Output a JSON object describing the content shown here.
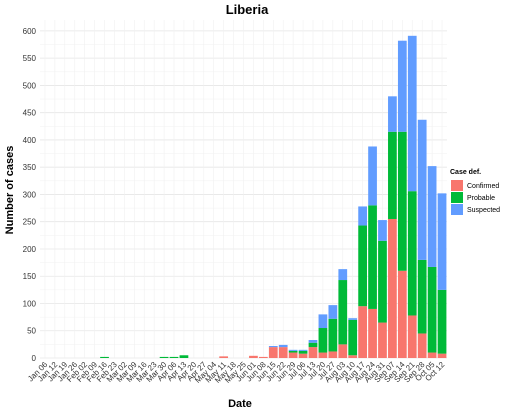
{
  "chart_data": {
    "type": "bar",
    "stacked": true,
    "title": "Liberia",
    "xlabel": "Date",
    "ylabel": "Number of cases",
    "ylim": [
      0,
      620
    ],
    "yticks": [
      0,
      50,
      100,
      150,
      200,
      250,
      300,
      350,
      400,
      450,
      500,
      550,
      600
    ],
    "grid": true,
    "legend": {
      "title": "Case def.",
      "placement": "right"
    },
    "xticks": [
      "Jan 06",
      "Jan 12",
      "Jan 19",
      "Jan 26",
      "Feb 02",
      "Feb 09",
      "Feb 16",
      "Feb 23",
      "Mar 02",
      "Mar 09",
      "Mar 16",
      "Mar 23",
      "Mar 30",
      "Apr 06",
      "Apr 13",
      "Apr 20",
      "Apr 27",
      "May 04",
      "May 11",
      "May 18",
      "May 25",
      "Jun 01",
      "Jun 08",
      "Jun 15",
      "Jun 22",
      "Jun 29",
      "Jul 06",
      "Jul 13",
      "Jul 20",
      "Jul 27",
      "Aug 03",
      "Aug 10",
      "Aug 17",
      "Aug 24",
      "Aug 31",
      "Sep 07",
      "Sep 14",
      "Sep 21",
      "Sep 28",
      "Oct 05",
      "Oct 12"
    ],
    "categories": [
      "Jan 06",
      "Jan 12",
      "Jan 19",
      "Jan 26",
      "Feb 02",
      "Feb 09",
      "Feb 16",
      "Feb 23",
      "Mar 02",
      "Mar 09",
      "Mar 16",
      "Mar 23",
      "Mar 30",
      "Apr 06",
      "Apr 13",
      "Apr 20",
      "Apr 27",
      "May 04",
      "May 11",
      "May 18",
      "May 25",
      "Jun 01",
      "Jun 08",
      "Jun 15",
      "Jun 22",
      "Jun 29",
      "Jul 06",
      "Jul 13",
      "Jul 20",
      "Jul 27",
      "Aug 03",
      "Aug 10",
      "Aug 17",
      "Aug 24",
      "Aug 31",
      "Sep 07",
      "Sep 14",
      "Sep 21",
      "Sep 28",
      "Oct 05",
      "Oct 12"
    ],
    "series": [
      {
        "name": "Confirmed",
        "color": "#F8766D",
        "values": [
          0,
          0,
          0,
          0,
          0,
          0,
          0,
          0,
          0,
          0,
          0,
          0,
          0,
          0,
          0,
          0,
          0,
          0,
          3,
          0,
          0,
          4,
          2,
          20,
          20,
          10,
          8,
          20,
          10,
          12,
          25,
          5,
          95,
          90,
          65,
          255,
          160,
          78,
          45,
          10,
          8
        ]
      },
      {
        "name": "Probable",
        "color": "#00BA38",
        "values": [
          0,
          0,
          0,
          0,
          0,
          0,
          2,
          0,
          0,
          0,
          0,
          0,
          2,
          2,
          5,
          0,
          0,
          0,
          0,
          0,
          0,
          0,
          0,
          0,
          0,
          3,
          5,
          8,
          45,
          60,
          118,
          65,
          148,
          190,
          150,
          160,
          255,
          228,
          135,
          157,
          117
        ]
      },
      {
        "name": "Suspected",
        "color": "#619CFF",
        "values": [
          0,
          0,
          0,
          0,
          0,
          0,
          0,
          0,
          0,
          0,
          0,
          0,
          0,
          0,
          0,
          0,
          0,
          0,
          0,
          0,
          0,
          0,
          0,
          2,
          4,
          2,
          2,
          5,
          25,
          25,
          20,
          3,
          35,
          108,
          38,
          65,
          167,
          285,
          257,
          185,
          177
        ]
      }
    ]
  }
}
